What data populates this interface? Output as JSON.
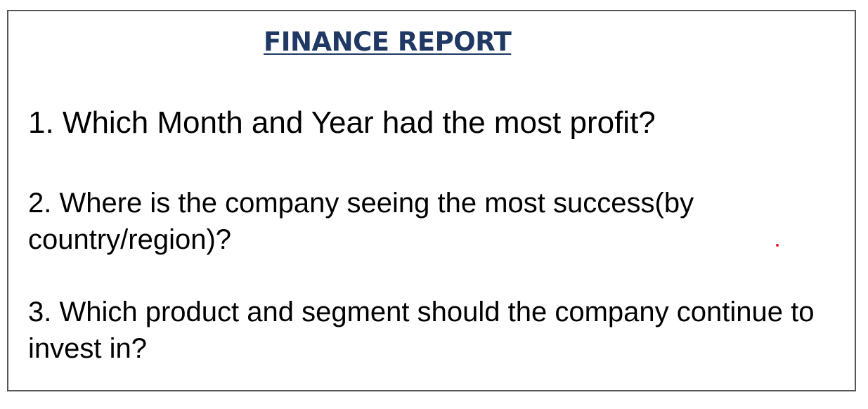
{
  "report": {
    "title": "FINANCE REPORT",
    "questions": [
      {
        "text": "1. Which Month and Year had the most profit?"
      },
      {
        "text": "2. Where is the company seeing the most success(by country/region)?"
      },
      {
        "text": "3. Which product and segment should the company continue to invest in?"
      }
    ]
  },
  "colors": {
    "title": "#1f3864",
    "border": "#555555",
    "text": "#000000",
    "marker_dot": "#e02020"
  }
}
